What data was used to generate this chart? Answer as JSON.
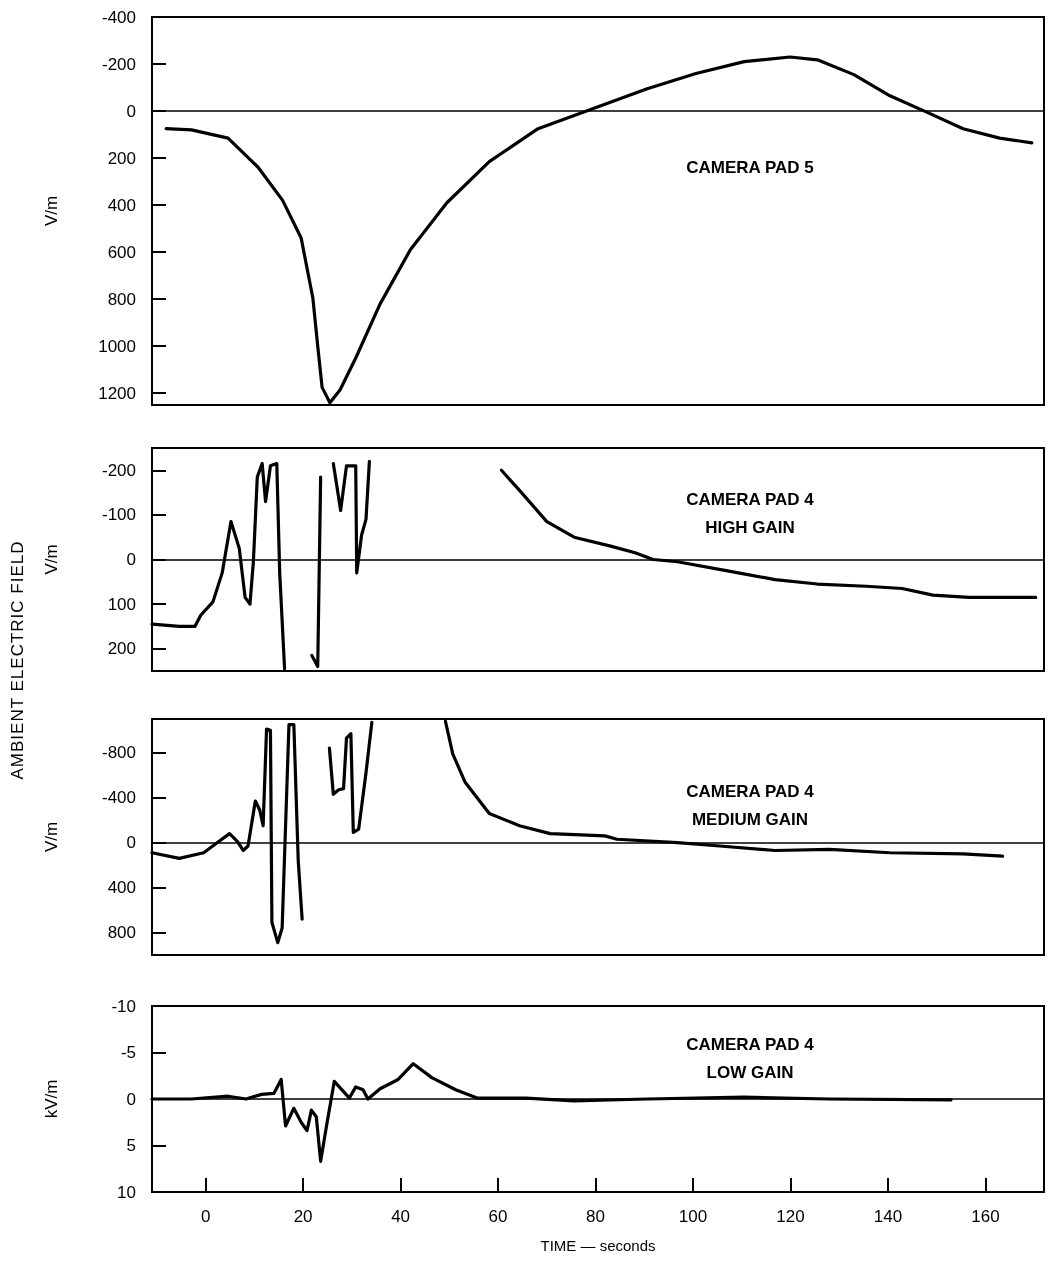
{
  "chart_data": [
    {
      "type": "line",
      "title": "CAMERA PAD 5",
      "ylabel": "V/m",
      "color": "#000000",
      "line_style": "solid",
      "marker": "none",
      "tick_labels": "y",
      "x": [
        -8.1,
        -2.9,
        4.6,
        10.8,
        15.8,
        19.6,
        22,
        23,
        23.9,
        25.5,
        27.6,
        30.8,
        35.8,
        42,
        49.5,
        58.2,
        68.2,
        79.4,
        90.6,
        100.6,
        110.5,
        119.9,
        125.5,
        133,
        140.4,
        148.5,
        155.4,
        162.9,
        169.5
      ],
      "values": [
        75,
        80,
        115,
        240,
        380,
        540,
        795,
        1000,
        1175,
        1240,
        1185,
        1050,
        820,
        590,
        390,
        215,
        75,
        -10,
        -95,
        -160,
        -210,
        -230,
        -218,
        -155,
        -65,
        10,
        75,
        115,
        135
      ],
      "xlim": [
        -11,
        172
      ],
      "ylim": [
        1250,
        -400
      ],
      "yticks": [
        -400,
        -200,
        0,
        200,
        400,
        600,
        800,
        1000,
        1200
      ],
      "ref_lines": [
        {
          "axis": "y",
          "value": 0
        }
      ]
    },
    {
      "type": "line",
      "title": "CAMERA PAD 4\nHIGH GAIN",
      "ylabel": "V/m",
      "annotations": [
        "AMBIENT ELECTRIC FIELD"
      ],
      "color": "#000000",
      "line_style": "solid",
      "marker": "none",
      "tick_labels": "y",
      "x": [
        -11,
        -5.4,
        -2.2,
        -1,
        1.5,
        3.4,
        5.2,
        6.9,
        8.1,
        9.1,
        9.8,
        10.6,
        11.6,
        12.3,
        13.3,
        14.6,
        15.2,
        16.2,
        19,
        21.8,
        23,
        23.6,
        25,
        26.2,
        27.7,
        28.9,
        30.8,
        31,
        32,
        32.9,
        33.6,
        47,
        60.7,
        64.4,
        70,
        75.6,
        83.1,
        88.1,
        91.8,
        96.8,
        106.8,
        116.8,
        125.5,
        135.5,
        142.9,
        149.2,
        156.6,
        170.3
      ],
      "values": [
        145,
        150,
        150,
        125,
        95,
        30,
        -85,
        -25,
        85,
        100,
        5,
        -185,
        -215,
        -130,
        -210,
        -215,
        30,
        245,
        null,
        215,
        240,
        -185,
        null,
        -215,
        -110,
        -210,
        -210,
        30,
        -55,
        -90,
        -220,
        null,
        -200,
        -155,
        -85,
        -50,
        -30,
        -15,
        0,
        5,
        25,
        45,
        55,
        60,
        65,
        80,
        85,
        85
      ],
      "xlim": [
        -11,
        172
      ],
      "ylim": [
        250,
        -250
      ],
      "yticks": [
        -200,
        -100,
        0,
        100,
        200
      ],
      "ref_lines": [
        {
          "axis": "y",
          "value": 0
        }
      ]
    },
    {
      "type": "line",
      "title": "CAMERA PAD 4\nMEDIUM GAIN",
      "ylabel": "V/m",
      "color": "#000000",
      "line_style": "solid",
      "marker": "none",
      "tick_labels": "y",
      "x": [
        -11,
        -5.4,
        -0.4,
        2.7,
        4.9,
        6.5,
        7.7,
        8.7,
        10.2,
        11.1,
        11.8,
        12.5,
        13.3,
        13.6,
        14.8,
        15.7,
        17.1,
        18.1,
        19,
        19.8,
        22,
        25.4,
        26.2,
        27.3,
        28.3,
        28.9,
        29.8,
        30.3,
        31.4,
        32.9,
        34.1,
        42,
        49.2,
        50.7,
        53.2,
        58.2,
        64.4,
        70.7,
        81.9,
        84.4,
        96.8,
        105.5,
        116.8,
        128,
        140.4,
        155.4,
        163.5
      ],
      "values": [
        90,
        140,
        90,
        -10,
        -80,
        -10,
        70,
        30,
        -370,
        -290,
        -150,
        -1010,
        -1000,
        710,
        890,
        760,
        -1050,
        -1050,
        160,
        680,
        null,
        -840,
        -430,
        -470,
        -480,
        -930,
        -970,
        -90,
        -120,
        -620,
        -1070,
        null,
        -1080,
        -790,
        -540,
        -260,
        -150,
        -80,
        -60,
        -30,
        0,
        30,
        70,
        60,
        90,
        100,
        120
      ],
      "xlim": [
        -11,
        172
      ],
      "ylim": [
        1000,
        -1100
      ],
      "yticks": [
        -800,
        -400,
        0,
        400,
        800
      ],
      "ref_lines": [
        {
          "axis": "y",
          "value": 0
        }
      ]
    },
    {
      "type": "line",
      "title": "CAMERA PAD 4\nLOW GAIN",
      "ylabel": "kV/m",
      "xlabel": "TIME — seconds",
      "color": "#000000",
      "line_style": "solid",
      "marker": "none",
      "x": [
        -11,
        -2.9,
        4.6,
        8.3,
        11.5,
        14,
        15.5,
        16.4,
        18.1,
        19.6,
        20.8,
        21.7,
        22.7,
        23.6,
        24.8,
        26.4,
        28.3,
        29.5,
        30.8,
        32.3,
        33.3,
        35.8,
        39.5,
        42.6,
        46.4,
        51.3,
        55.7,
        65.7,
        75.6,
        90.6,
        110.5,
        128,
        152.9
      ],
      "values": [
        0,
        0,
        -0.3,
        0,
        -0.5,
        -0.6,
        -2.1,
        2.9,
        1,
        2.5,
        3.4,
        1.2,
        1.9,
        6.7,
        2.9,
        -1.9,
        -0.8,
        -0.1,
        -1.3,
        -1,
        0,
        -1.1,
        -2.1,
        -3.8,
        -2.3,
        -1,
        -0.1,
        -0.1,
        0.2,
        0,
        -0.2,
        0,
        0.1
      ],
      "xlim": [
        -11,
        172
      ],
      "ylim": [
        10,
        -10
      ],
      "yticks": [
        -10,
        -5,
        0,
        5,
        10
      ],
      "xticks": [
        0,
        20,
        40,
        60,
        80,
        100,
        120,
        140,
        160
      ],
      "ref_lines": [
        {
          "axis": "y",
          "value": 0
        }
      ]
    }
  ]
}
